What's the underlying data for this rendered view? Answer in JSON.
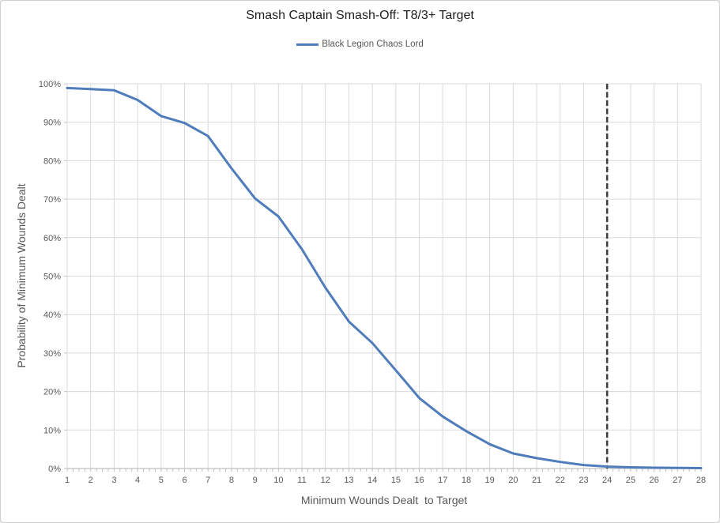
{
  "title": "Smash Captain Smash-Off: T8/3+ Target",
  "legend": [
    {
      "label": "Black Legion Chaos Lord",
      "color": "#4f7cba"
    }
  ],
  "axes": {
    "x_title": "Minimum Wounds Dealt  to Target",
    "y_title": "Probability of Minimum Wounds Dealt"
  },
  "colors": {
    "series_blue": "#4f7cba",
    "target_marker": "#404040",
    "gridline": "#d9d9d9",
    "axis_line": "#bfbfbf",
    "tick_text": "#595959",
    "title_text": "#1f1f1f",
    "background": "#ffffff",
    "border": "#cfcfcf"
  },
  "chart_data": {
    "type": "line",
    "title": "Smash Captain Smash-Off: T8/3+ Target",
    "xlabel": "Minimum Wounds Dealt  to Target",
    "ylabel": "Probability of Minimum Wounds Dealt",
    "x": [
      1,
      2,
      3,
      4,
      5,
      6,
      7,
      8,
      9,
      10,
      11,
      12,
      13,
      14,
      15,
      16,
      17,
      18,
      19,
      20,
      21,
      22,
      23,
      24,
      25,
      26,
      27,
      28
    ],
    "series": [
      {
        "name": "Black Legion Chaos Lord",
        "color": "#4f7cba",
        "values": [
          98.9,
          98.6,
          98.3,
          95.8,
          91.6,
          89.8,
          86.4,
          78.0,
          70.2,
          65.5,
          57.0,
          47.0,
          38.2,
          32.6,
          25.5,
          18.3,
          13.5,
          9.7,
          6.3,
          3.9,
          2.7,
          1.7,
          0.9,
          0.5,
          0.3,
          0.2,
          0.15,
          0.1
        ]
      }
    ],
    "ylim": [
      0,
      100
    ],
    "y_ticks": [
      {
        "value": 0,
        "label": "0%"
      },
      {
        "value": 10,
        "label": "10%"
      },
      {
        "value": 20,
        "label": "20%"
      },
      {
        "value": 30,
        "label": "30%"
      },
      {
        "value": 40,
        "label": "40%"
      },
      {
        "value": 50,
        "label": "50%"
      },
      {
        "value": 60,
        "label": "60%"
      },
      {
        "value": 70,
        "label": "70%"
      },
      {
        "value": 80,
        "label": "80%"
      },
      {
        "value": 90,
        "label": "90%"
      },
      {
        "value": 100,
        "label": "100%"
      }
    ],
    "grid": "both",
    "legend_position": "top",
    "annotations": [
      {
        "type": "vline",
        "x": 24,
        "style": "dashed",
        "color": "#404040",
        "meaning": "target-threshold"
      }
    ]
  }
}
